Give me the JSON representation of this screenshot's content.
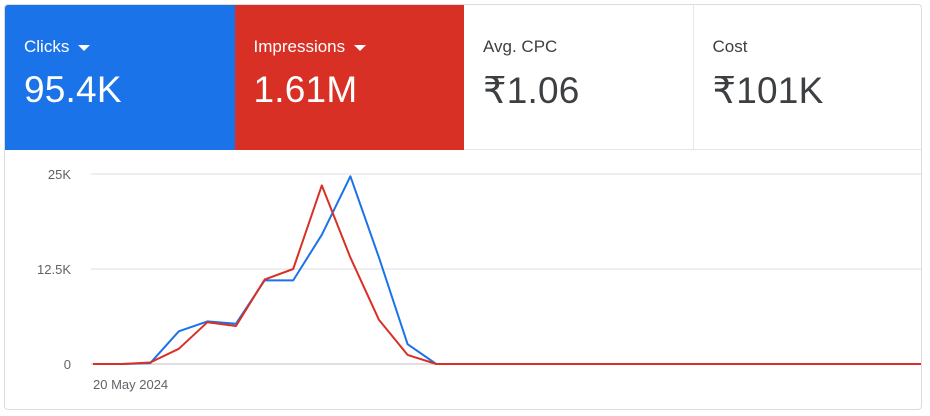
{
  "metrics": [
    {
      "label": "Clicks",
      "value": "95.4K",
      "color": "#1a73e8",
      "has_dropdown": true
    },
    {
      "label": "Impressions",
      "value": "1.61M",
      "color": "#d93025",
      "has_dropdown": true
    },
    {
      "label": "Avg. CPC",
      "value": "₹1.06",
      "has_dropdown": false
    },
    {
      "label": "Cost",
      "value": "₹101K",
      "has_dropdown": false
    }
  ],
  "chart_data": {
    "type": "line",
    "y_ticks": [
      "25K",
      "12.5K",
      "0"
    ],
    "ylim": [
      0,
      25000
    ],
    "x_tick_label": "20 May 2024",
    "grid": true,
    "series": [
      {
        "name": "Clicks",
        "color": "#1a73e8",
        "values": [
          0,
          0,
          100,
          4300,
          5600,
          5300,
          11000,
          11000,
          17000,
          24700,
          14000,
          2600,
          0,
          0,
          0,
          0,
          0,
          0,
          0,
          0,
          0,
          0,
          0,
          0,
          0,
          0,
          0,
          0,
          0,
          0
        ]
      },
      {
        "name": "Impressions",
        "color": "#d93025",
        "values": [
          0,
          0,
          200,
          2000,
          5500,
          5000,
          11100,
          12500,
          23500,
          14000,
          5800,
          1200,
          0,
          0,
          0,
          0,
          0,
          0,
          0,
          0,
          0,
          0,
          0,
          0,
          0,
          0,
          0,
          0,
          0,
          0
        ]
      }
    ]
  }
}
